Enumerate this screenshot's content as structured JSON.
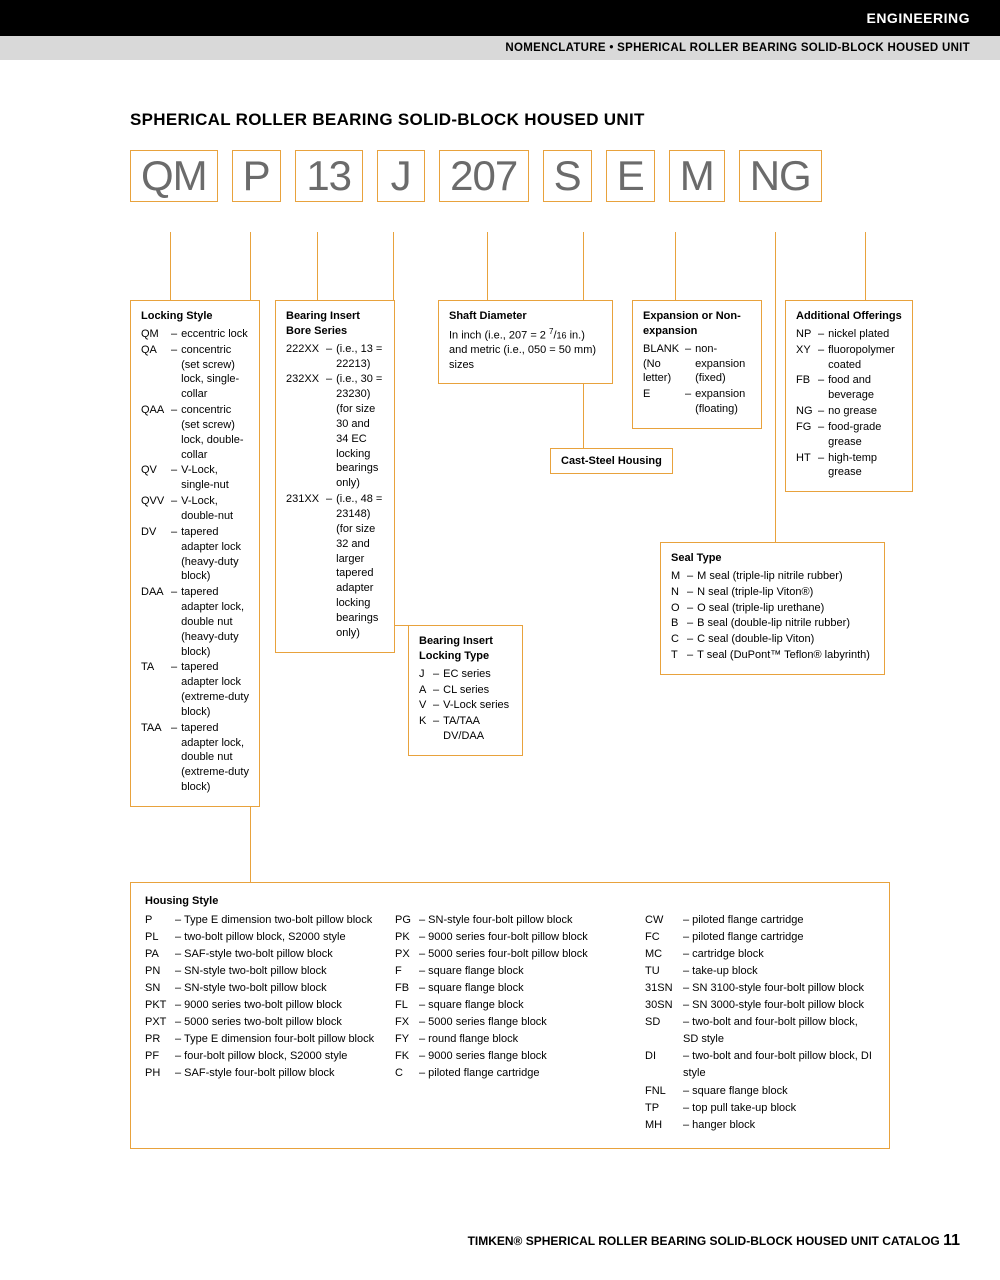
{
  "header": {
    "category": "ENGINEERING",
    "subtitle": "NOMENCLATURE • SPHERICAL ROLLER BEARING SOLID-BLOCK HOUSED UNIT"
  },
  "title": "SPHERICAL ROLLER BEARING SOLID-BLOCK HOUSED UNIT",
  "code": [
    "QM",
    "P",
    "13",
    "J",
    "207",
    "S",
    "E",
    "M",
    "NG"
  ],
  "locking_style": {
    "heading": "Locking Style",
    "items": [
      {
        "c": "QM",
        "d": "eccentric lock"
      },
      {
        "c": "QA",
        "d": "concentric (set screw) lock, single-collar"
      },
      {
        "c": "QAA",
        "d": "concentric (set screw) lock, double-collar"
      },
      {
        "c": "QV",
        "d": "V-Lock, single-nut"
      },
      {
        "c": "QVV",
        "d": "V-Lock, double-nut"
      },
      {
        "c": "DV",
        "d": "tapered adapter lock (heavy-duty block)"
      },
      {
        "c": "DAA",
        "d": "tapered adapter lock, double nut (heavy-duty block)"
      },
      {
        "c": "TA",
        "d": "tapered adapter lock (extreme-duty block)"
      },
      {
        "c": "TAA",
        "d": "tapered adapter lock, double nut (extreme-duty block)"
      }
    ]
  },
  "bearing_insert": {
    "heading": "Bearing Insert Bore Series",
    "items": [
      {
        "c": "222XX",
        "d": "(i.e., 13 = 22213)"
      },
      {
        "c": "232XX",
        "d": "(i.e., 30 = 23230) (for size 30 and 34 EC locking bearings only)"
      },
      {
        "c": "231XX",
        "d": "(i.e., 48 = 23148) (for size 32 and larger tapered adapter locking bearings only)"
      }
    ]
  },
  "locking_type": {
    "heading": "Bearing Insert Locking Type",
    "items": [
      {
        "c": "J",
        "d": "EC series"
      },
      {
        "c": "A",
        "d": "CL series"
      },
      {
        "c": "V",
        "d": "V-Lock series"
      },
      {
        "c": "K",
        "d": "TA/TAA DV/DAA"
      }
    ]
  },
  "shaft_diameter": {
    "heading": "Shaft Diameter",
    "text": "In inch (i.e., 207 = 2 7/16 in.) and metric (i.e., 050 = 50 mm) sizes"
  },
  "cast_steel": "Cast-Steel Housing",
  "expansion": {
    "heading": "Expansion or Non-expansion",
    "items": [
      {
        "c": "BLANK (No letter)",
        "d": "non-expansion (fixed)"
      },
      {
        "c": "E",
        "d": "expansion (floating)"
      }
    ]
  },
  "seal_type": {
    "heading": "Seal Type",
    "items": [
      {
        "c": "M",
        "d": "M seal (triple-lip nitrile rubber)"
      },
      {
        "c": "N",
        "d": "N seal (triple-lip Viton®)"
      },
      {
        "c": "O",
        "d": "O seal (triple-lip urethane)"
      },
      {
        "c": "B",
        "d": "B seal (double-lip nitrile rubber)"
      },
      {
        "c": "C",
        "d": "C seal (double-lip Viton)"
      },
      {
        "c": "T",
        "d": "T seal (DuPont™ Teflon® labyrinth)"
      }
    ]
  },
  "additional": {
    "heading": "Additional Offerings",
    "items": [
      {
        "c": "NP",
        "d": "nickel plated"
      },
      {
        "c": "XY",
        "d": "fluoropolymer coated"
      },
      {
        "c": "FB",
        "d": "food and beverage"
      },
      {
        "c": "NG",
        "d": "no grease"
      },
      {
        "c": "FG",
        "d": "food-grade grease"
      },
      {
        "c": "HT",
        "d": "high-temp grease"
      }
    ]
  },
  "housing": {
    "heading": "Housing Style",
    "col1": [
      {
        "c": "P",
        "d": "Type E dimension two-bolt pillow block"
      },
      {
        "c": "PL",
        "d": "two-bolt pillow block, S2000 style"
      },
      {
        "c": "PA",
        "d": "SAF-style two-bolt pillow block"
      },
      {
        "c": "PN",
        "d": "SN-style two-bolt pillow block"
      },
      {
        "c": "SN",
        "d": "SN-style two-bolt pillow block"
      },
      {
        "c": "PKT",
        "d": "9000 series two-bolt pillow block"
      },
      {
        "c": "PXT",
        "d": "5000 series two-bolt pillow block"
      },
      {
        "c": "PR",
        "d": "Type E dimension four-bolt pillow block"
      },
      {
        "c": "PF",
        "d": "four-bolt pillow block, S2000 style"
      },
      {
        "c": "PH",
        "d": "SAF-style four-bolt pillow block"
      }
    ],
    "col2": [
      {
        "c": "PG",
        "d": "SN-style four-bolt pillow block"
      },
      {
        "c": "PK",
        "d": "9000 series four-bolt pillow block"
      },
      {
        "c": "PX",
        "d": "5000 series four-bolt pillow block"
      },
      {
        "c": "F",
        "d": "square flange block"
      },
      {
        "c": "FB",
        "d": "square flange block"
      },
      {
        "c": "FL",
        "d": "square flange block"
      },
      {
        "c": "FX",
        "d": "5000 series flange block"
      },
      {
        "c": "FY",
        "d": "round flange block"
      },
      {
        "c": "FK",
        "d": "9000 series flange block"
      },
      {
        "c": "C",
        "d": "piloted flange cartridge"
      }
    ],
    "col3": [
      {
        "c": "CW",
        "d": "piloted flange cartridge"
      },
      {
        "c": "FC",
        "d": "piloted flange cartridge"
      },
      {
        "c": "MC",
        "d": "cartridge block"
      },
      {
        "c": "TU",
        "d": "take-up block"
      },
      {
        "c": "31SN",
        "d": "SN 3100-style four-bolt pillow block"
      },
      {
        "c": "30SN",
        "d": "SN 3000-style four-bolt pillow block"
      },
      {
        "c": "SD",
        "d": "two-bolt and four-bolt pillow block, SD style"
      },
      {
        "c": "DI",
        "d": "two-bolt and four-bolt pillow block, DI style"
      },
      {
        "c": "FNL",
        "d": "square flange block"
      },
      {
        "c": "TP",
        "d": "top pull take-up block"
      },
      {
        "c": "MH",
        "d": "hanger block"
      }
    ]
  },
  "footer": {
    "text": "TIMKEN® SPHERICAL ROLLER BEARING SOLID-BLOCK HOUSED UNIT CATALOG",
    "page": "11"
  },
  "colors": {
    "accent": "#e8a23d",
    "codetext": "#6b6b6b"
  }
}
